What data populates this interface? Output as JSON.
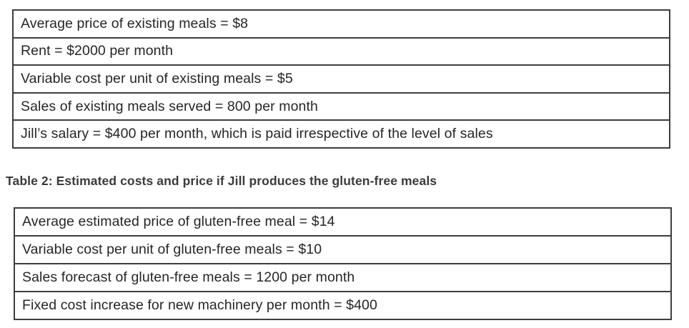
{
  "existing_table": {
    "rows": [
      "Average price of existing meals = $8",
      "Rent = $2000 per month",
      "Variable cost per unit of existing meals = $5",
      "Sales of existing meals served = 800 per month",
      "Jill’s salary = $400 per month, which is paid irrespective of the level of sales"
    ]
  },
  "caption": "Table 2: Estimated costs and price if Jill produces the gluten-free meals",
  "glutenfree_table": {
    "rows": [
      "Average estimated price of gluten-free meal = $14",
      "Variable cost per unit of gluten-free meals = $10",
      "Sales forecast of gluten-free meals = 1200 per month",
      "Fixed cost increase for new machinery per month = $400"
    ]
  },
  "colors": {
    "border": "#3e3e3e",
    "text": "#262626",
    "background": "#ffffff"
  }
}
